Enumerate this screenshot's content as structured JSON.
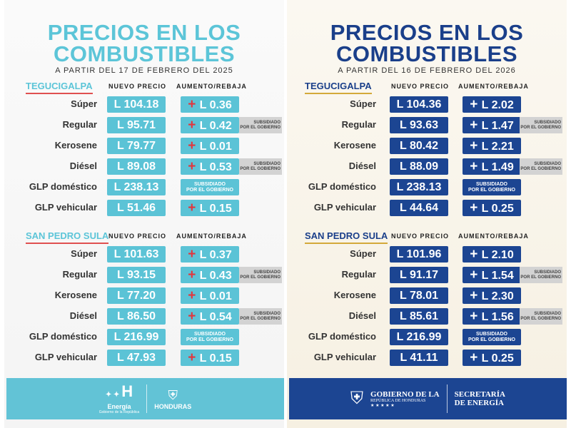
{
  "headers": {
    "price": "NUEVO PRECIO",
    "change": "AUMENTO/REBAJA"
  },
  "subsidy": [
    "SUBSIDIADO",
    "POR EL GOBIERNO"
  ],
  "posters": [
    {
      "title1": "PRECIOS EN LOS",
      "title2": "COMBUSTIBLES",
      "subtitle": "A PARTIR DEL 17 DE FEBRERO DEL 2025",
      "accent": "#5bc3d6",
      "plus_color": "#e2363d",
      "footer": {
        "brand": "Energía",
        "brand_sub": "Gobierno de la República",
        "mark": "H",
        "country": "HONDURAS"
      },
      "cities": [
        {
          "name": "TEGUCIGALPA",
          "rows": [
            {
              "fuel": "Súper",
              "price": "L 104.18",
              "change": "L 0.36",
              "tag": false
            },
            {
              "fuel": "Regular",
              "price": "L 95.71",
              "change": "L 0.42",
              "tag": true
            },
            {
              "fuel": "Kerosene",
              "price": "L 79.77",
              "change": "L 0.01",
              "tag": false
            },
            {
              "fuel": "Diésel",
              "price": "L 89.08",
              "change": "L 0.53",
              "tag": true
            },
            {
              "fuel": "GLP doméstico",
              "price": "L 238.13",
              "change": null,
              "tag": false
            },
            {
              "fuel": "GLP vehicular",
              "price": "L 51.46",
              "change": "L 0.15",
              "tag": false
            }
          ]
        },
        {
          "name": "SAN PEDRO SULA",
          "rows": [
            {
              "fuel": "Súper",
              "price": "L 101.63",
              "change": "L 0.37",
              "tag": false
            },
            {
              "fuel": "Regular",
              "price": "L 93.15",
              "change": "L 0.43",
              "tag": true
            },
            {
              "fuel": "Kerosene",
              "price": "L 77.20",
              "change": "L 0.01",
              "tag": false
            },
            {
              "fuel": "Diésel",
              "price": "L 86.50",
              "change": "L 0.54",
              "tag": true
            },
            {
              "fuel": "GLP doméstico",
              "price": "L 216.99",
              "change": null,
              "tag": false
            },
            {
              "fuel": "GLP vehicular",
              "price": "L 47.93",
              "change": "L 0.15",
              "tag": false
            }
          ]
        }
      ]
    },
    {
      "title1": "PRECIOS EN LOS",
      "title2": "COMBUSTIBLES",
      "subtitle": "A PARTIR DEL 16 DE FEBRERO DEL 2026",
      "accent": "#1c4592",
      "plus_color": "#ffffff",
      "footer": {
        "gov1": "GOBIERNO DE LA",
        "gov2": "REPÚBLICA DE HONDURAS",
        "sec1": "SECRETARÍA",
        "sec2": "DE ENERGÍA"
      },
      "cities": [
        {
          "name": "TEGUCIGALPA",
          "rows": [
            {
              "fuel": "Súper",
              "price": "L 104.36",
              "change": "L 2.02",
              "tag": false
            },
            {
              "fuel": "Regular",
              "price": "L 93.63",
              "change": "L 1.47",
              "tag": true
            },
            {
              "fuel": "Kerosene",
              "price": "L 80.42",
              "change": "L 2.21",
              "tag": false
            },
            {
              "fuel": "Diésel",
              "price": "L 88.09",
              "change": "L 1.49",
              "tag": true
            },
            {
              "fuel": "GLP doméstico",
              "price": "L 238.13",
              "change": null,
              "tag": false
            },
            {
              "fuel": "GLP vehicular",
              "price": "L 44.64",
              "change": "L 0.25",
              "tag": false
            }
          ]
        },
        {
          "name": "SAN PEDRO SULA",
          "rows": [
            {
              "fuel": "Súper",
              "price": "L 101.96",
              "change": "L 2.10",
              "tag": false
            },
            {
              "fuel": "Regular",
              "price": "L 91.17",
              "change": "L 1.54",
              "tag": true
            },
            {
              "fuel": "Kerosene",
              "price": "L 78.01",
              "change": "L 2.30",
              "tag": false
            },
            {
              "fuel": "Diésel",
              "price": "L 85.61",
              "change": "L 1.56",
              "tag": true
            },
            {
              "fuel": "GLP doméstico",
              "price": "L 216.99",
              "change": null,
              "tag": false
            },
            {
              "fuel": "GLP vehicular",
              "price": "L 41.11",
              "change": "L 0.25",
              "tag": false
            }
          ]
        }
      ]
    }
  ]
}
